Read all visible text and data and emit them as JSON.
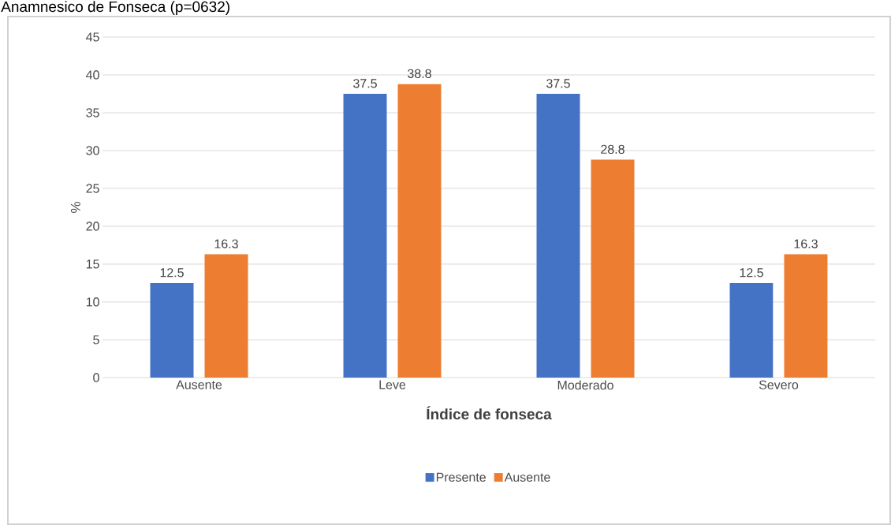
{
  "chart_data": {
    "type": "bar",
    "title": "Anamnesico de Fonseca (p=0632)",
    "xlabel": "Índice de fonseca",
    "ylabel": "%",
    "categories": [
      "Ausente",
      "Leve",
      "Moderado",
      "Severo"
    ],
    "series": [
      {
        "name": "Presente",
        "color": "#4472c4",
        "values": [
          12.5,
          37.5,
          37.5,
          12.5
        ]
      },
      {
        "name": "Ausente",
        "color": "#ed7d31",
        "values": [
          16.3,
          38.8,
          28.8,
          16.3
        ]
      }
    ],
    "ylim": [
      0,
      45
    ],
    "yticks": [
      0,
      5,
      10,
      15,
      20,
      25,
      30,
      35,
      40,
      45
    ],
    "grid": "y",
    "legend": "bottom",
    "data_labels": true
  }
}
